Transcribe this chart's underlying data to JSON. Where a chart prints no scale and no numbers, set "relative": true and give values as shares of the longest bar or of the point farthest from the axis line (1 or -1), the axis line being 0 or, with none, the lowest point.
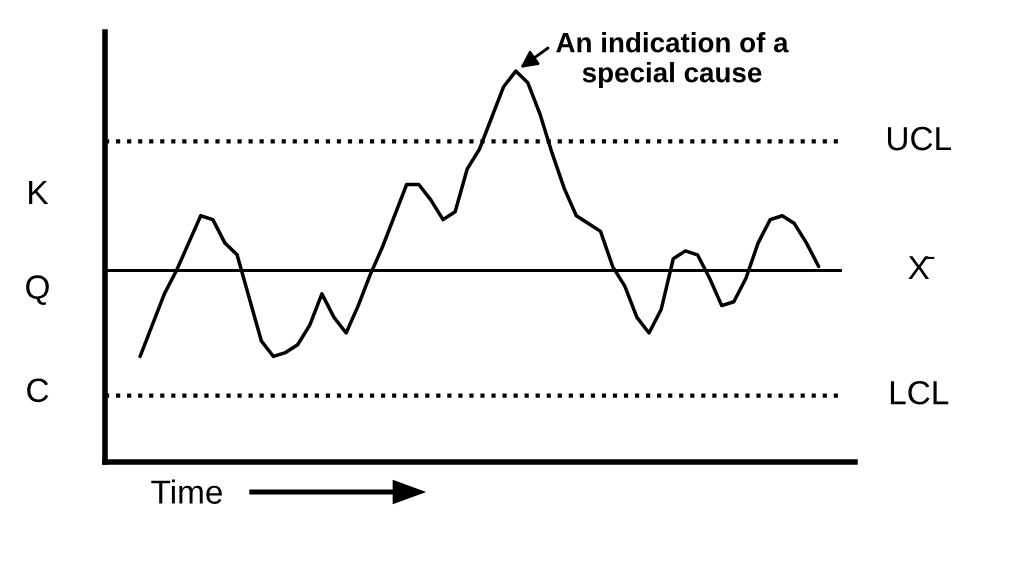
{
  "chart_data": {
    "type": "line",
    "relative": true,
    "color": "#000000",
    "line_style": "solid",
    "marker": "none",
    "grid": false,
    "legend": false,
    "xlabel": "Time",
    "categories": [
      null,
      null,
      null,
      null,
      null,
      null,
      null,
      null,
      null,
      null,
      null,
      null,
      null,
      null,
      null,
      null,
      null,
      null,
      null,
      null,
      null,
      null,
      null,
      null,
      null,
      null,
      null,
      null,
      null,
      null,
      null,
      null,
      null,
      null,
      null,
      null,
      null,
      null,
      null,
      null,
      null,
      null,
      null,
      null,
      null,
      null,
      null,
      null,
      null,
      null,
      null,
      null,
      null,
      null,
      null,
      null,
      null
    ],
    "values": [
      0.27,
      0.35,
      0.43,
      0.49,
      0.56,
      0.63,
      0.62,
      0.56,
      0.53,
      0.42,
      0.31,
      0.27,
      0.28,
      0.3,
      0.35,
      0.43,
      0.37,
      0.33,
      0.4,
      0.48,
      0.55,
      0.63,
      0.71,
      0.71,
      0.67,
      0.62,
      0.64,
      0.75,
      0.8,
      0.88,
      0.96,
      1.0,
      0.97,
      0.89,
      0.79,
      0.7,
      0.63,
      0.61,
      0.59,
      0.5,
      0.45,
      0.37,
      0.33,
      0.39,
      0.52,
      0.54,
      0.53,
      0.47,
      0.4,
      0.41,
      0.47,
      0.56,
      0.62,
      0.63,
      0.61,
      0.56,
      0.5
    ],
    "ref_lines": [
      {
        "axis": "y",
        "value": 0.82,
        "label": "UCL",
        "line_style": "dotted",
        "color": "#000000"
      },
      {
        "axis": "y",
        "value": 0.49,
        "label": "X̄",
        "line_style": "solid",
        "color": "#000000"
      },
      {
        "axis": "y",
        "value": 0.17,
        "label": "LCL",
        "line_style": "dotted",
        "color": "#000000"
      }
    ],
    "annotations": [
      "An indication of a special cause",
      "K",
      "Q",
      "C"
    ]
  }
}
